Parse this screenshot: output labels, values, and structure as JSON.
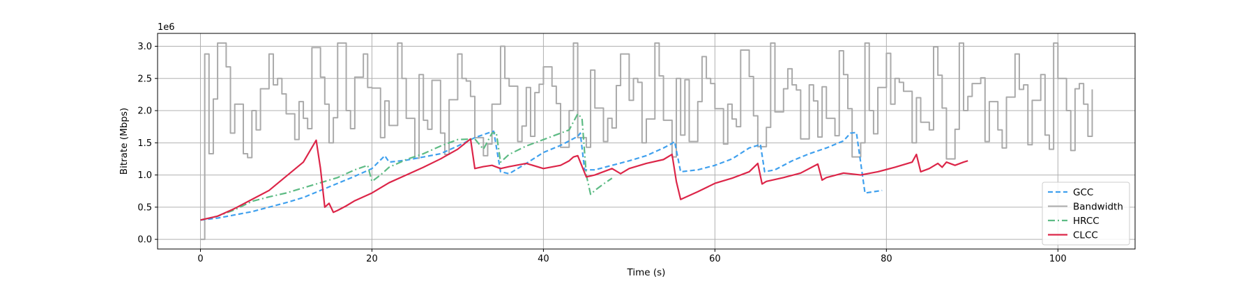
{
  "chart_data": {
    "type": "line",
    "xlabel": "Time (s)",
    "ylabel": "Bitrate (Mbps)",
    "y_offset_text": "1e6",
    "xlim": [
      -5,
      109
    ],
    "ylim": [
      -150000,
      3200000
    ],
    "x_ticks": [
      {
        "value": 0,
        "label": "0"
      },
      {
        "value": 20,
        "label": "20"
      },
      {
        "value": 40,
        "label": "40"
      },
      {
        "value": 60,
        "label": "60"
      },
      {
        "value": 80,
        "label": "80"
      },
      {
        "value": 100,
        "label": "100"
      }
    ],
    "y_ticks": [
      {
        "value": 0,
        "label": "0.0"
      },
      {
        "value": 500000,
        "label": "0.5"
      },
      {
        "value": 1000000,
        "label": "1.0"
      },
      {
        "value": 1500000,
        "label": "1.5"
      },
      {
        "value": 2000000,
        "label": "2.0"
      },
      {
        "value": 2500000,
        "label": "2.5"
      },
      {
        "value": 3000000,
        "label": "3.0"
      }
    ],
    "grid": true,
    "legend_position": "lower-right",
    "series": [
      {
        "name": "GCC",
        "color": "#3fa0ee",
        "style": "dashed",
        "x": [
          0,
          2,
          4,
          6,
          8,
          10,
          12,
          14,
          16,
          18,
          20,
          21.5,
          22,
          24,
          26,
          28,
          30,
          32,
          33.5,
          34.2,
          35,
          36,
          38,
          40,
          42,
          44,
          44.3,
          44.8,
          46,
          48,
          50,
          52,
          54,
          55,
          55.3,
          56,
          58,
          60,
          62,
          64,
          65,
          65.3,
          65.8,
          67,
          69,
          71,
          73,
          75,
          75.8,
          76.5,
          77.5,
          79.5
        ],
        "y": [
          300000,
          330000,
          380000,
          430000,
          500000,
          570000,
          650000,
          760000,
          870000,
          980000,
          1100000,
          1300000,
          1200000,
          1230000,
          1280000,
          1330000,
          1450000,
          1580000,
          1650000,
          1680000,
          1050000,
          1020000,
          1180000,
          1350000,
          1460000,
          1600000,
          1650000,
          1080000,
          1080000,
          1150000,
          1220000,
          1300000,
          1420000,
          1490000,
          1520000,
          1050000,
          1080000,
          1150000,
          1250000,
          1420000,
          1460000,
          1480000,
          1050000,
          1080000,
          1220000,
          1330000,
          1420000,
          1530000,
          1650000,
          1660000,
          720000,
          760000
        ]
      },
      {
        "name": "Bandwidth",
        "color": "#aaaaaa",
        "style": "step",
        "x": [
          0,
          0.5,
          1,
          1.5,
          2,
          3,
          3.5,
          4,
          5,
          5.5,
          6,
          6.5,
          7,
          8,
          8.5,
          9,
          9.5,
          10,
          11,
          11.5,
          12,
          12.5,
          13,
          14,
          14.5,
          15,
          15.5,
          16,
          17,
          17.5,
          18,
          19,
          19.5,
          20,
          21,
          21.5,
          22,
          23,
          23.5,
          24,
          25,
          25.5,
          26,
          26.5,
          27,
          28,
          28.5,
          29,
          30,
          30.5,
          31,
          31.5,
          32,
          33,
          33.5,
          34,
          35,
          35.5,
          36,
          37,
          37.5,
          38,
          38.5,
          39,
          39.5,
          40,
          41,
          41.5,
          42,
          43,
          43.5,
          44,
          45,
          45.5,
          46,
          47,
          47.5,
          48,
          48.5,
          49,
          50,
          50.5,
          51,
          51.5,
          52,
          53,
          53.5,
          54,
          55,
          55.5,
          56,
          56.5,
          57,
          58,
          58.5,
          59,
          59.5,
          60,
          61,
          61.5,
          62,
          62.5,
          63,
          64,
          64.5,
          65,
          66,
          66.5,
          67,
          68,
          68.5,
          69,
          69.5,
          70,
          71,
          71.5,
          72,
          72.5,
          73,
          74,
          74.5,
          75,
          75.5,
          76,
          77,
          77.5,
          78,
          78.5,
          79,
          80,
          80.5,
          81,
          81.5,
          82,
          83,
          83.5,
          84,
          85,
          85.5,
          86,
          86.5,
          87,
          88,
          88.5,
          89,
          89.5,
          90,
          91,
          91.5,
          92,
          93,
          93.5,
          94,
          95,
          95.5,
          96,
          96.5,
          97,
          98,
          98.5,
          99,
          99.5,
          100,
          101,
          101.5,
          102,
          102.5,
          103,
          103.5,
          104
        ],
        "y": [
          0,
          2880000,
          1330000,
          2180000,
          3050000,
          2680000,
          1650000,
          2100000,
          1330000,
          1270000,
          2000000,
          1700000,
          2340000,
          2880000,
          2400000,
          2500000,
          2260000,
          1950000,
          1550000,
          2140000,
          1880000,
          1720000,
          2980000,
          2520000,
          2100000,
          1500000,
          1890000,
          3050000,
          2000000,
          1720000,
          2520000,
          2880000,
          2360000,
          2350000,
          1580000,
          2150000,
          1770000,
          3050000,
          2500000,
          1880000,
          1260000,
          2560000,
          1850000,
          1710000,
          2470000,
          1650000,
          1320000,
          2170000,
          2880000,
          2500000,
          2460000,
          2220000,
          1580000,
          1300000,
          1480000,
          2100000,
          3000000,
          2500000,
          2380000,
          1520000,
          1760000,
          2360000,
          1600000,
          2280000,
          2410000,
          2680000,
          2380000,
          2110000,
          1430000,
          2000000,
          3050000,
          1580000,
          1430000,
          2630000,
          2040000,
          1520000,
          1880000,
          1730000,
          2390000,
          2880000,
          2160000,
          2500000,
          2440000,
          1500000,
          1870000,
          3050000,
          2540000,
          1850000,
          1280000,
          2500000,
          1620000,
          2480000,
          1520000,
          2140000,
          2840000,
          2500000,
          2420000,
          2030000,
          1480000,
          2100000,
          1870000,
          1750000,
          2940000,
          2530000,
          1920000,
          1440000,
          1740000,
          3050000,
          1980000,
          2340000,
          2650000,
          2400000,
          2320000,
          1560000,
          2400000,
          2150000,
          1590000,
          2370000,
          1880000,
          1610000,
          2930000,
          2560000,
          2030000,
          1280000,
          1500000,
          3050000,
          2000000,
          1640000,
          2360000,
          2890000,
          2100000,
          2500000,
          2440000,
          2300000,
          1500000,
          2200000,
          1820000,
          1700000,
          2990000,
          2550000,
          2040000,
          1250000,
          1710000,
          3050000,
          2000000,
          2220000,
          2420000,
          2510000,
          1520000,
          2140000,
          1700000,
          1420000,
          2210000,
          2880000,
          2330000,
          2400000,
          1470000,
          2160000,
          2560000,
          1620000,
          1400000,
          3050000,
          2500000,
          2000000,
          1380000,
          2340000,
          2420000,
          2100000,
          1600000,
          2330000
        ]
      },
      {
        "name": "HRCC",
        "color": "#5dbb84",
        "style": "dashdot",
        "x": [
          0,
          2,
          4,
          6,
          8,
          10,
          12,
          14,
          16,
          18,
          19.5,
          20,
          21,
          22,
          24,
          26,
          28,
          30,
          32,
          33,
          34,
          34.5,
          35,
          36,
          38,
          40,
          42,
          43,
          44,
          44.5,
          45,
          45.5,
          46,
          47,
          48
        ],
        "y": [
          300000,
          360000,
          460000,
          590000,
          660000,
          720000,
          800000,
          880000,
          960000,
          1080000,
          1150000,
          900000,
          1000000,
          1120000,
          1240000,
          1330000,
          1450000,
          1550000,
          1560000,
          1400000,
          1650000,
          1660000,
          1200000,
          1320000,
          1450000,
          1550000,
          1650000,
          1700000,
          1950000,
          1880000,
          1000000,
          700000,
          760000,
          860000,
          950000
        ]
      },
      {
        "name": "CLCC",
        "color": "#dc2548",
        "style": "solid",
        "x": [
          0,
          2,
          4,
          6,
          8,
          10,
          12,
          13.5,
          14,
          14.5,
          15,
          15.5,
          16,
          17,
          18,
          20,
          22,
          24,
          26,
          28,
          30,
          31.5,
          32,
          33,
          34,
          35,
          36,
          38,
          40,
          42,
          43,
          43.5,
          44,
          45,
          46,
          48,
          49,
          50,
          52,
          54,
          55,
          55.5,
          56,
          58,
          60,
          62,
          64,
          65,
          65.5,
          66,
          68,
          70,
          72,
          72.5,
          73,
          75,
          77,
          79,
          81,
          83,
          83.5,
          84,
          85,
          86,
          86.5,
          87,
          88,
          89,
          89.5
        ],
        "y": [
          300000,
          360000,
          480000,
          620000,
          760000,
          980000,
          1200000,
          1540000,
          1100000,
          500000,
          560000,
          420000,
          450000,
          520000,
          600000,
          720000,
          880000,
          1000000,
          1120000,
          1250000,
          1400000,
          1560000,
          1100000,
          1130000,
          1150000,
          1100000,
          1130000,
          1180000,
          1100000,
          1150000,
          1220000,
          1280000,
          1300000,
          970000,
          1000000,
          1100000,
          1020000,
          1100000,
          1180000,
          1240000,
          1320000,
          900000,
          620000,
          740000,
          870000,
          950000,
          1050000,
          1180000,
          860000,
          900000,
          960000,
          1030000,
          1170000,
          920000,
          960000,
          1030000,
          1000000,
          1050000,
          1120000,
          1200000,
          1320000,
          1050000,
          1100000,
          1180000,
          1120000,
          1200000,
          1150000,
          1200000,
          1220000
        ]
      }
    ],
    "legend_order": [
      "GCC",
      "Bandwidth",
      "HRCC",
      "CLCC"
    ]
  }
}
